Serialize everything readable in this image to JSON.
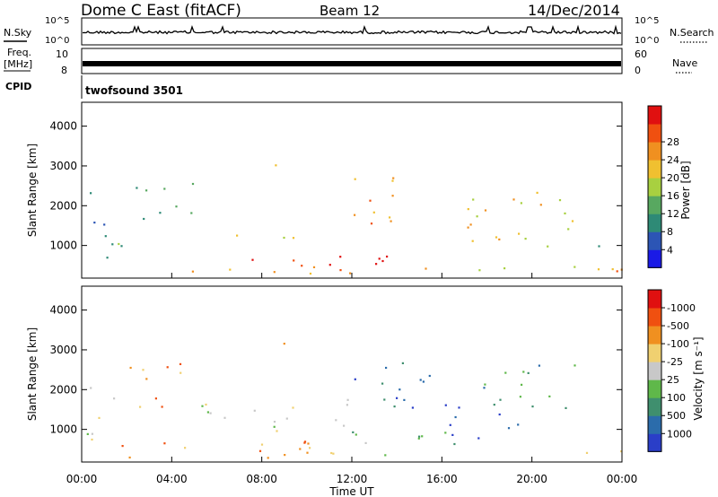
{
  "header": {
    "station": "Dome C East (fitACF)",
    "beam": "Beam 12",
    "date": "14/Dec/2014"
  },
  "noise_panel": {
    "left_label": "N.Sky",
    "right_label": "N.Search",
    "left_ticks": [
      "10^5",
      "10^0"
    ],
    "right_ticks": [
      "10^5",
      "10^0"
    ]
  },
  "freq_panel": {
    "left_label_1": "Freq.",
    "left_label_2": "[MHz]",
    "left_ticks": [
      "10",
      "8"
    ],
    "right_label": "Nave",
    "right_ticks": [
      "60",
      "0"
    ]
  },
  "cpid_panel": {
    "label": "CPID",
    "program": "twofsound 3501"
  },
  "time_axis": {
    "label": "Time UT",
    "ticks": [
      "00:00",
      "04:00",
      "08:00",
      "12:00",
      "16:00",
      "20:00",
      "00:00"
    ]
  },
  "colors": {
    "power": [
      "#1a1ae6",
      "#2c55b5",
      "#2e8a76",
      "#58a860",
      "#a8d040",
      "#f0c030",
      "#f09020",
      "#f05010",
      "#e01010"
    ],
    "velocity": [
      "#2a3ec8",
      "#2b6cab",
      "#3f8f6e",
      "#5fb84a",
      "#c8c8c8",
      "#f0d070",
      "#f09020",
      "#f05010",
      "#e01010"
    ]
  },
  "chart_data": [
    {
      "type": "heatmap",
      "panel": "power",
      "ylabel": "Slant Range [km]",
      "xlabel": "Time UT",
      "x_ticks": [
        "00:00",
        "04:00",
        "08:00",
        "12:00",
        "16:00",
        "20:00",
        "00:00"
      ],
      "y_ticks": [
        1000,
        2000,
        3000,
        4000
      ],
      "ylim": [
        180,
        4600
      ],
      "colorbar": {
        "label": "Power [dB]",
        "ticks": [
          4,
          8,
          12,
          16,
          20,
          24,
          28
        ]
      },
      "regions": [
        {
          "t": [
            0.0,
            24.0
          ],
          "r": [
            300,
            500
          ],
          "level": 5
        },
        {
          "t": [
            0.0,
            2.5
          ],
          "r": [
            500,
            1100
          ],
          "level": 3
        },
        {
          "t": [
            0.1,
            1.2
          ],
          "r": [
            1100,
            2500
          ],
          "level": 1
        },
        {
          "t": [
            2.0,
            5.0
          ],
          "r": [
            1600,
            2700
          ],
          "level": 3
        },
        {
          "t": [
            5.0,
            9.5
          ],
          "r": [
            1000,
            1300
          ],
          "level": 4
        },
        {
          "t": [
            7.0,
            12.0
          ],
          "r": [
            400,
            900
          ],
          "level": 8
        },
        {
          "t": [
            8.5,
            9.0
          ],
          "r": [
            2800,
            3400
          ],
          "level": 4
        },
        {
          "t": [
            12.0,
            15.0
          ],
          "r": [
            1500,
            2800
          ],
          "level": 6
        },
        {
          "t": [
            13.0,
            16.0
          ],
          "r": [
            400,
            900
          ],
          "level": 8
        },
        {
          "t": [
            17.0,
            22.0
          ],
          "r": [
            1000,
            2600
          ],
          "level": 5
        },
        {
          "t": [
            22.0,
            24.0
          ],
          "r": [
            1000,
            1100
          ],
          "level": 1
        },
        {
          "t": [
            21.5,
            24.0
          ],
          "r": [
            300,
            600
          ],
          "level": 7
        }
      ]
    },
    {
      "type": "heatmap",
      "panel": "velocity",
      "ylabel": "Slant Range [km]",
      "xlabel": "Time UT",
      "x_ticks": [
        "00:00",
        "04:00",
        "08:00",
        "12:00",
        "16:00",
        "20:00",
        "00:00"
      ],
      "y_ticks": [
        1000,
        2000,
        3000,
        4000
      ],
      "ylim": [
        180,
        4600
      ],
      "colorbar": {
        "label": "Velocity [m s⁻¹]",
        "ticks": [
          "1000",
          "500",
          "100",
          "25",
          "-25",
          "-100",
          "-500",
          "-1000"
        ]
      },
      "regions": [
        {
          "t": [
            0.0,
            12.0
          ],
          "r": [
            300,
            700
          ],
          "level": 6
        },
        {
          "t": [
            0.2,
            1.5
          ],
          "r": [
            700,
            2500
          ],
          "level": 4
        },
        {
          "t": [
            2.0,
            5.0
          ],
          "r": [
            1500,
            2700
          ],
          "level": 6
        },
        {
          "t": [
            5.0,
            12.0
          ],
          "r": [
            1000,
            1800
          ],
          "level": 4
        },
        {
          "t": [
            8.0,
            11.0
          ],
          "r": [
            400,
            1000
          ],
          "level": 6
        },
        {
          "t": [
            8.5,
            9.0
          ],
          "r": [
            2800,
            3400
          ],
          "level": 6
        },
        {
          "t": [
            12.0,
            16.0
          ],
          "r": [
            1500,
            2800
          ],
          "level": 1
        },
        {
          "t": [
            12.0,
            17.0
          ],
          "r": [
            300,
            1000
          ],
          "level": 3
        },
        {
          "t": [
            16.0,
            20.0
          ],
          "r": [
            800,
            1700
          ],
          "level": 0
        },
        {
          "t": [
            17.5,
            22.0
          ],
          "r": [
            1500,
            2700
          ],
          "level": 2
        },
        {
          "t": [
            22.0,
            24.0
          ],
          "r": [
            300,
            600
          ],
          "level": 5
        }
      ]
    }
  ]
}
